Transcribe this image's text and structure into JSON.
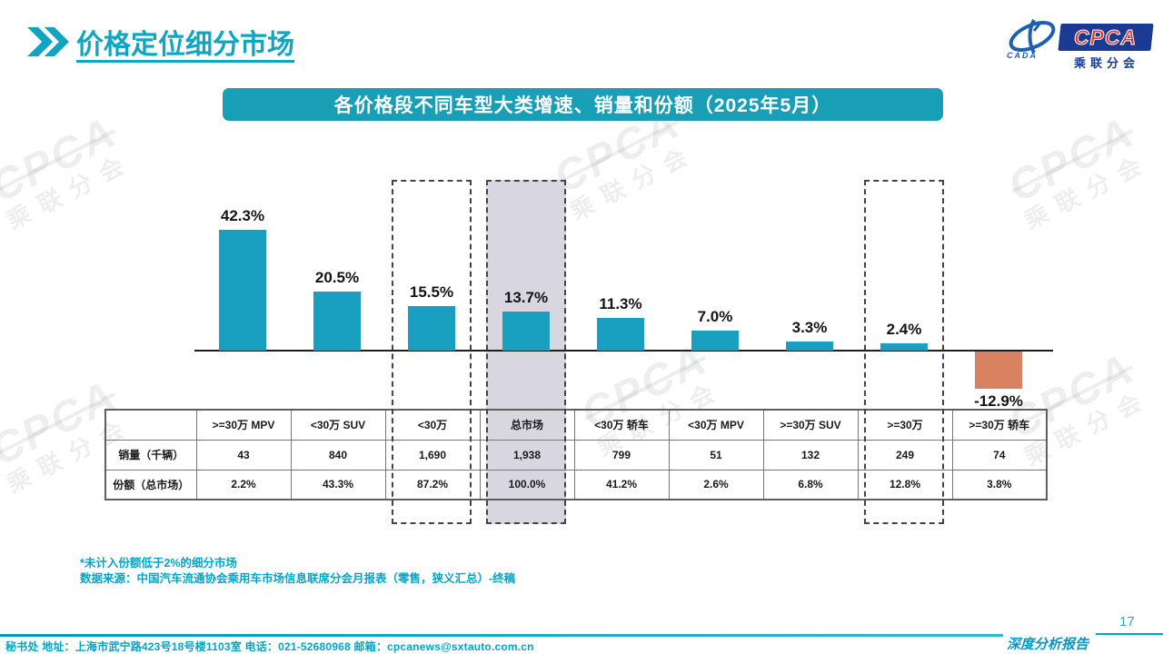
{
  "header": {
    "title": "价格定位细分市场"
  },
  "logo": {
    "cpca": "CPCA",
    "cada": "CADA",
    "sub": "乘联分会"
  },
  "banner": {
    "text": "各价格段不同车型大类增速、销量和份额（2025年5月）"
  },
  "chart_data": {
    "type": "bar",
    "title": "各价格段不同车型大类增速、销量和份额（2025年5月）",
    "categories": [
      ">=30万 MPV",
      "<30万 SUV",
      "<30万",
      "总市场",
      "<30万 轿车",
      "<30万 MPV",
      ">=30万 SUV",
      ">=30万",
      ">=30万 轿车"
    ],
    "series": [
      {
        "name": "增速",
        "values": [
          42.3,
          20.5,
          15.5,
          13.7,
          11.3,
          7.0,
          3.3,
          2.4,
          -12.9
        ],
        "labels": [
          "42.3%",
          "20.5%",
          "15.5%",
          "13.7%",
          "11.3%",
          "7.0%",
          "3.3%",
          "2.4%",
          "-12.9%"
        ]
      },
      {
        "name": "销量（千辆）",
        "values": [
          "43",
          "840",
          "1,690",
          "1,938",
          "799",
          "51",
          "132",
          "249",
          "74"
        ]
      },
      {
        "name": "份额（总市场）",
        "values": [
          "2.2%",
          "43.3%",
          "87.2%",
          "100.0%",
          "41.2%",
          "2.6%",
          "6.8%",
          "12.8%",
          "3.8%"
        ]
      }
    ],
    "table_row_labels": [
      "销量（千辆）",
      "份额（总市场）"
    ],
    "highlighted_dashed_categories": [
      "<30万",
      ">=30万"
    ],
    "highlighted_filled_category": "总市场",
    "colors": {
      "bar": "#199FBF",
      "negative_bar": "#D9825F",
      "highlight_fill": "#D8D6DF",
      "dashed_border": "#3F4450"
    },
    "xlabel": "",
    "ylabel": "",
    "grid": false,
    "legend": "none",
    "baseline": 0
  },
  "footnotes": {
    "line1": "*未计入份额低于2%的细分市场",
    "line2": "数据来源：中国汽车流通协会乘用车市场信息联席分会月报表（零售，狭义汇总）-终稿"
  },
  "footer": {
    "address": "秘书处  地址：上海市武宁路423号18号楼1103室 电话：021-52680968  邮箱：cpcanews@sxtauto.com.cn",
    "report_label": "深度分析报告",
    "page_number": "17"
  },
  "watermark": {
    "main": "CPCA",
    "sub": "乘联分会"
  }
}
